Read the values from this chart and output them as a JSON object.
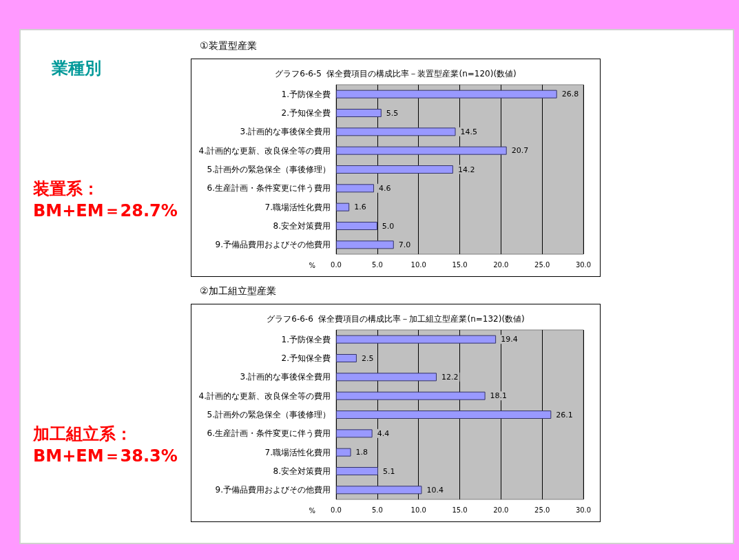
{
  "chart_data": [
    {
      "type": "bar",
      "orientation": "horizontal",
      "subtitle": "①装置型産業",
      "title": "グラフ6-6-5  保全費項目の構成比率－装置型産業(n=120)(数値)",
      "xlabel": "%",
      "categories": [
        "1.予防保全費",
        "2.予知保全費",
        "3.計画的な事後保全費用",
        "4.計画的な更新、改良保全等の費用",
        "5.計画外の緊急保全（事後修理）",
        "6.生産計画・条件変更に伴う費用",
        "7.職場活性化費用",
        "8.安全対策費用",
        "9.予備品費用およびその他費用"
      ],
      "values": [
        26.8,
        5.5,
        14.5,
        20.7,
        14.2,
        4.6,
        1.6,
        5.0,
        7.0
      ],
      "color": "#9999ff",
      "value_labels": [
        "26.8",
        "5.5",
        "14.5",
        "20.7",
        "14.2",
        "4.6",
        "1.6",
        "5.0",
        "7.0"
      ],
      "xlim": [
        0,
        30
      ],
      "xticks": [
        {
          "value": 0,
          "label": "0.0"
        },
        {
          "value": 5,
          "label": "5.0"
        },
        {
          "value": 10,
          "label": "10.0"
        },
        {
          "value": 15,
          "label": "15.0"
        },
        {
          "value": 20,
          "label": "20.0"
        },
        {
          "value": 25,
          "label": "25.0"
        },
        {
          "value": 30,
          "label": "30.0"
        }
      ],
      "grid": "x",
      "annotations": [
        "業種別",
        "装置系：\nBM+EM＝28.7%"
      ]
    },
    {
      "type": "bar",
      "orientation": "horizontal",
      "subtitle": "②加工組立型産業",
      "title": "グラフ6-6-6  保全費項目の構成比率－加工組立型産業(n=132)(数値)",
      "xlabel": "%",
      "categories": [
        "1.予防保全費",
        "2.予知保全費",
        "3.計画的な事後保全費用",
        "4.計画的な更新、改良保全等の費用",
        "5.計画外の緊急保全（事後修理）",
        "6.生産計画・条件変更に伴う費用",
        "7.職場活性化費用",
        "8.安全対策費用",
        "9.予備品費用およびその他費用"
      ],
      "values": [
        19.4,
        2.5,
        12.2,
        18.1,
        26.1,
        4.4,
        1.8,
        5.1,
        10.4
      ],
      "color": "#9999ff",
      "value_labels": [
        "19.4",
        "2.5",
        "12.2",
        "18.1",
        "26.1",
        "4.4",
        "1.8",
        "5.1",
        "10.4"
      ],
      "xlim": [
        0,
        30
      ],
      "xticks": [
        {
          "value": 0,
          "label": "0.0"
        },
        {
          "value": 5,
          "label": "5.0"
        },
        {
          "value": 10,
          "label": "10.0"
        },
        {
          "value": 15,
          "label": "15.0"
        },
        {
          "value": 20,
          "label": "20.0"
        },
        {
          "value": 25,
          "label": "25.0"
        },
        {
          "value": 30,
          "label": "30.0"
        }
      ],
      "grid": "x",
      "annotations": [
        "加工組立系：\nBM+EM＝38.3%"
      ]
    }
  ]
}
